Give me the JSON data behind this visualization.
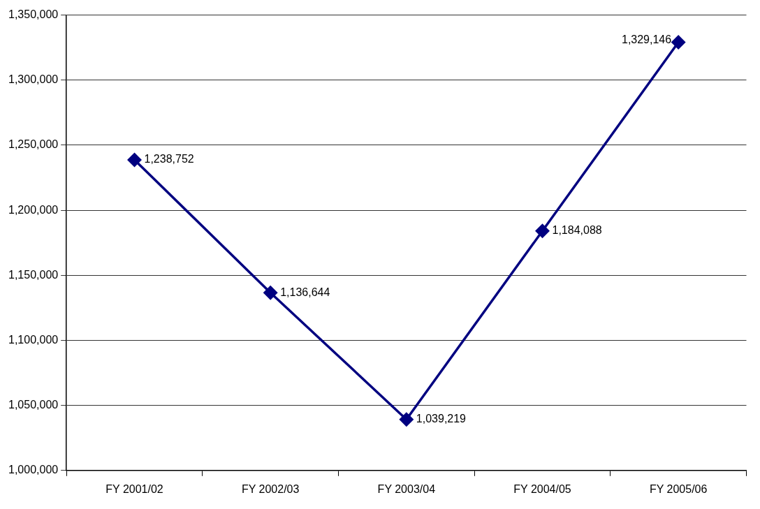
{
  "chart_data": {
    "type": "line",
    "categories": [
      "FY 2001/02",
      "FY 2002/03",
      "FY 2003/04",
      "FY 2004/05",
      "FY 2005/06"
    ],
    "series": [
      {
        "color": "#000080",
        "values": [
          1238752,
          1136644,
          1039219,
          1184088,
          1329146
        ],
        "value_labels": [
          "1,238,752",
          "1,136,644",
          "1,039,219",
          "1,184,088",
          "1,329,146"
        ]
      }
    ],
    "ylim": [
      1000000,
      1350000
    ],
    "yticks": [
      {
        "value": 1000000,
        "label": "1,000,000"
      },
      {
        "value": 1050000,
        "label": "1,050,000"
      },
      {
        "value": 1100000,
        "label": "1,100,000"
      },
      {
        "value": 1150000,
        "label": "1,150,000"
      },
      {
        "value": 1200000,
        "label": "1,200,000"
      },
      {
        "value": 1250000,
        "label": "1,250,000"
      },
      {
        "value": 1300000,
        "label": "1,300,000"
      },
      {
        "value": 1350000,
        "label": "1,350,000"
      }
    ],
    "grid": "y",
    "marker": "diamond",
    "line_style": "solid",
    "legend": false
  }
}
